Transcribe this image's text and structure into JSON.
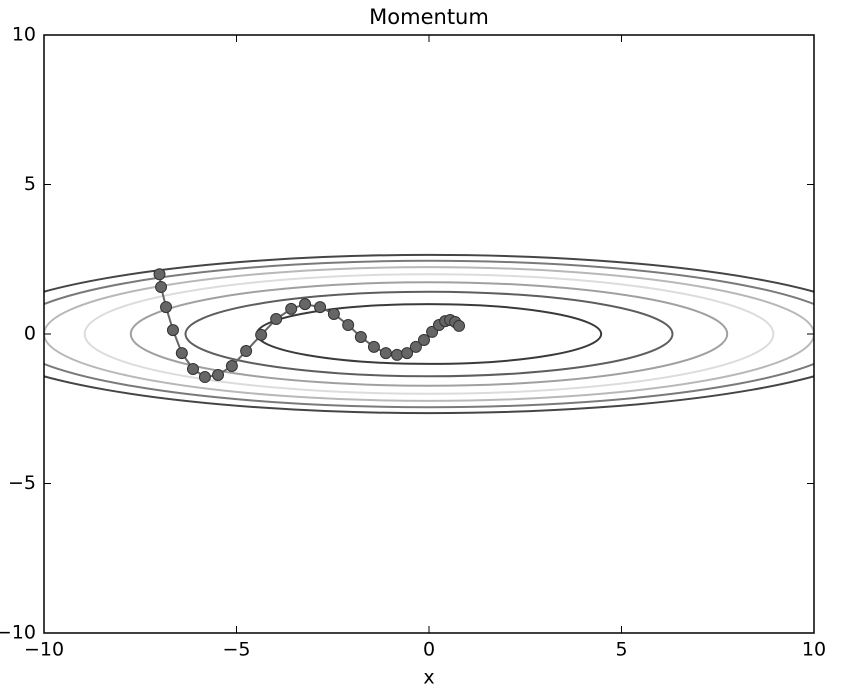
{
  "chart_data": {
    "type": "contour-path",
    "title": "Momentum",
    "xlabel": "x",
    "xlim": [
      -10,
      10
    ],
    "ylim": [
      -10,
      10
    ],
    "xticks": [
      {
        "value": -10,
        "label": "−10"
      },
      {
        "value": -5,
        "label": "−5"
      },
      0,
      5,
      10
    ],
    "yticks": [
      {
        "value": -10,
        "label": "−10"
      },
      {
        "value": -5,
        "label": "−5"
      },
      0,
      5,
      10
    ],
    "contour_levels": [
      1,
      2,
      3,
      4,
      5,
      6,
      7
    ],
    "contour_colors": [
      "#3a3a3a",
      "#5e5e5e",
      "#a0a0a0",
      "#dcdcdc",
      "#b8b8b8",
      "#7a7a7a",
      "#454545"
    ],
    "path_color": "#666666",
    "x": [
      -7.0,
      -6.96,
      -6.83,
      -6.65,
      -6.42,
      -6.13,
      -5.82,
      -5.48,
      -5.12,
      -4.75,
      -4.36,
      -3.97,
      -3.58,
      -3.22,
      -2.83,
      -2.47,
      -2.1,
      -1.77,
      -1.43,
      -1.12,
      -0.83,
      -0.57,
      -0.34,
      -0.13,
      0.08,
      0.26,
      0.42,
      0.55,
      0.68,
      0.78
    ],
    "y": [
      2.0,
      1.57,
      0.9,
      0.13,
      -0.64,
      -1.17,
      -1.44,
      -1.37,
      -1.07,
      -0.57,
      -0.03,
      0.5,
      0.84,
      1.0,
      0.9,
      0.67,
      0.3,
      -0.1,
      -0.43,
      -0.64,
      -0.7,
      -0.64,
      -0.43,
      -0.2,
      0.07,
      0.3,
      0.43,
      0.47,
      0.4,
      0.27
    ]
  }
}
